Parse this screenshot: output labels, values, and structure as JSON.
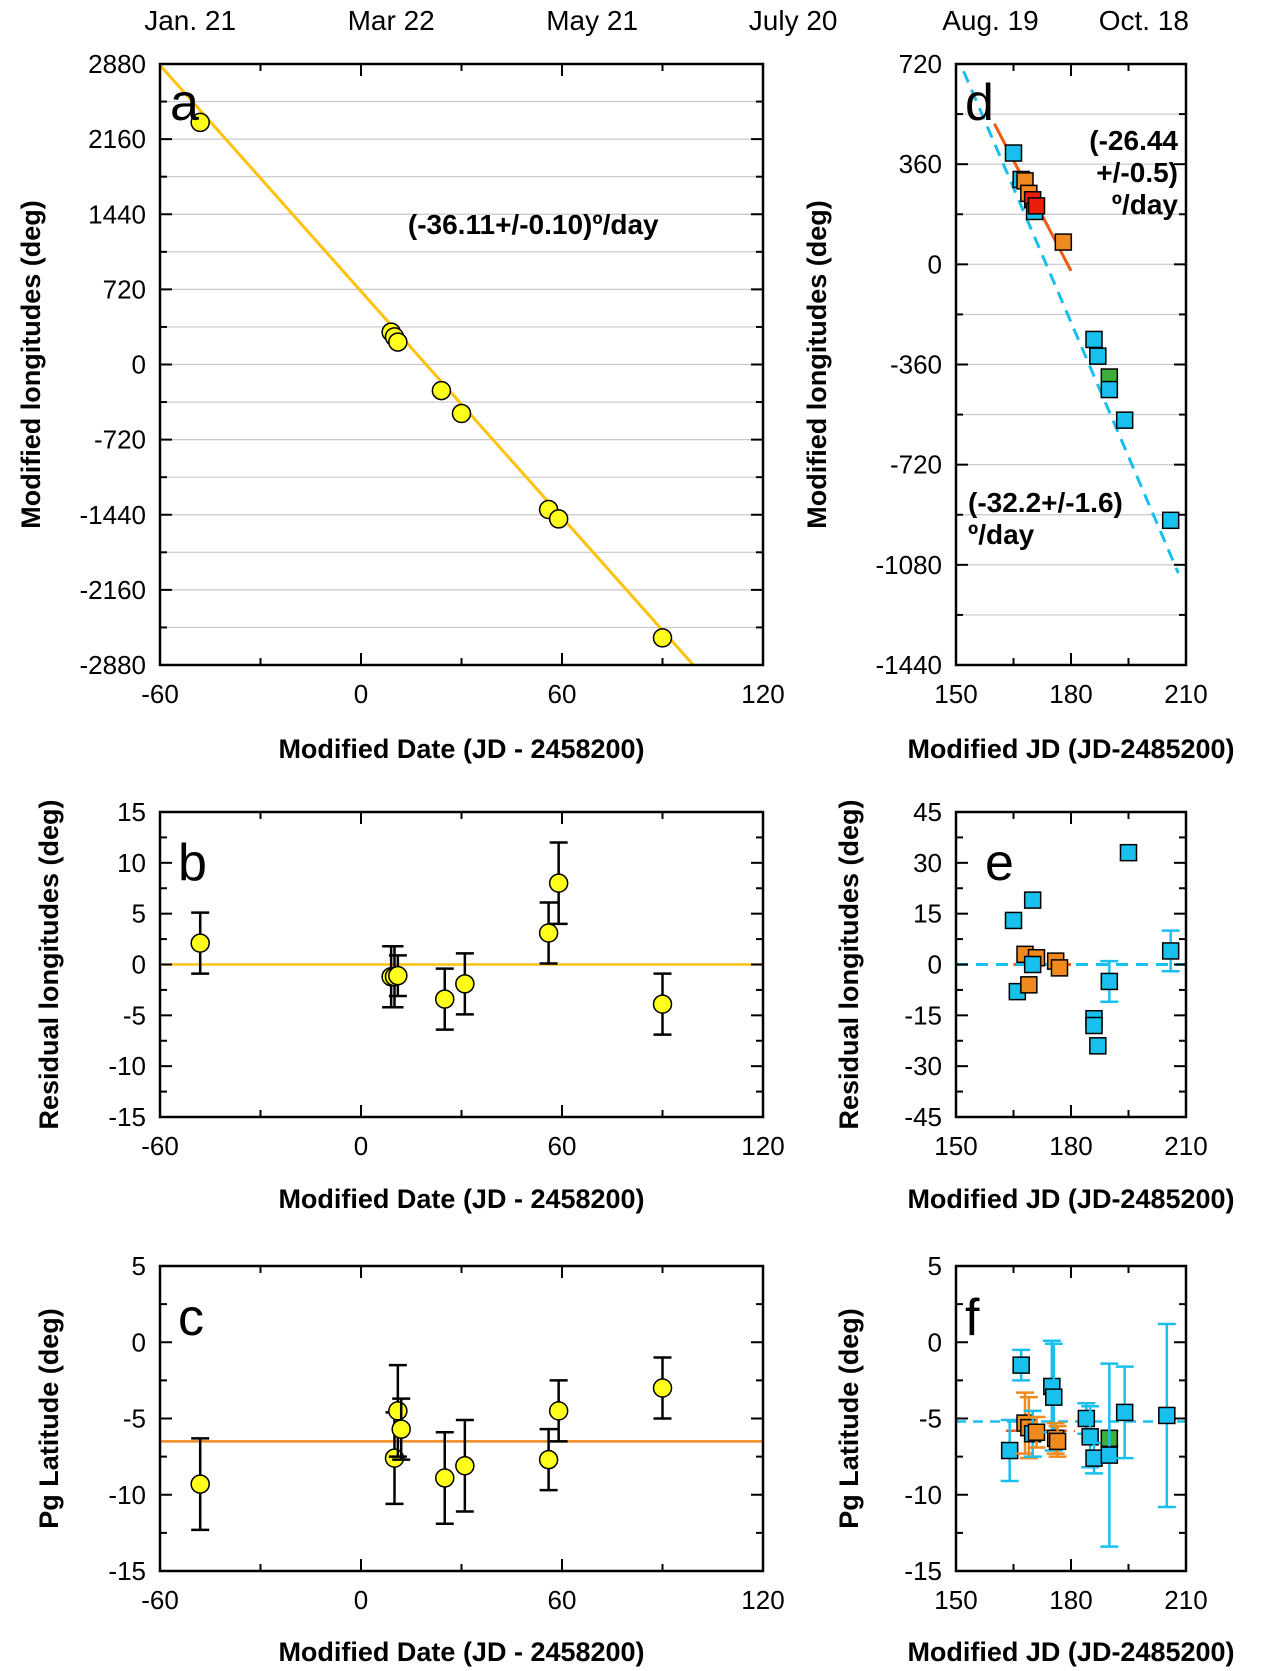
{
  "colors": {
    "yellow_fill": "#ffff1a",
    "yellow_line": "#ffc20e",
    "orange": "#f08a1e",
    "red_orange": "#ef5a12",
    "red_marker": "#ee1c0b",
    "cyan": "#19c0ee",
    "green": "#3eb03a",
    "annotation_orange": "#f7941d",
    "annotation_red_orange": "#f26522",
    "annotation_cyan": "#1ab7ea"
  },
  "chart_data": [
    {
      "id": "a",
      "type": "scatter",
      "panel_label": "a",
      "ylabel": "Modified longitudes (deg)",
      "xlabel": "Modified Date (JD - 2458200)",
      "xlim": [
        -60,
        120
      ],
      "ylim": [
        -2880,
        2880
      ],
      "xticks": [
        -60,
        0,
        60,
        120
      ],
      "yticks": [
        -2880,
        -2160,
        -1440,
        -720,
        0,
        720,
        1440,
        2160,
        2880
      ],
      "grid": "horizontal",
      "top_axis_labels": [
        {
          "x": -51,
          "label": "Jan. 21"
        },
        {
          "x": 9,
          "label": "Mar 22"
        },
        {
          "x": 69,
          "label": "May 21"
        },
        {
          "x": 129,
          "label": "July 20"
        }
      ],
      "fit_line": {
        "slope": -36.11,
        "intercept": 702,
        "color": "yellow_line"
      },
      "annotation": {
        "text": "(-36.11+/-0.10)º/day",
        "x": 14,
        "y": 1250
      },
      "points": [
        {
          "x": -48,
          "y": 2320
        },
        {
          "x": 9,
          "y": 310
        },
        {
          "x": 10,
          "y": 265
        },
        {
          "x": 11,
          "y": 215
        },
        {
          "x": 24,
          "y": -250
        },
        {
          "x": 30,
          "y": -470
        },
        {
          "x": 56,
          "y": -1390
        },
        {
          "x": 59,
          "y": -1480
        },
        {
          "x": 90,
          "y": -2620
        }
      ]
    },
    {
      "id": "b",
      "type": "scatter",
      "panel_label": "b",
      "ylabel": "Residual longitudes (deg)",
      "xlabel": "Modified Date (JD - 2458200)",
      "xlim": [
        -60,
        120
      ],
      "ylim": [
        -15,
        15
      ],
      "xticks": [
        -60,
        0,
        60,
        120
      ],
      "yticks": [
        -15,
        -10,
        -5,
        0,
        5,
        10,
        15
      ],
      "zero_line_color": "yellow_line",
      "points": [
        {
          "x": -48,
          "y": 2.1,
          "err": 3
        },
        {
          "x": 9,
          "y": -1.2,
          "err": 3
        },
        {
          "x": 10,
          "y": -1.2,
          "err": 3
        },
        {
          "x": 11,
          "y": -1.1,
          "err": 2
        },
        {
          "x": 25,
          "y": -3.4,
          "err": 3
        },
        {
          "x": 31,
          "y": -1.9,
          "err": 3
        },
        {
          "x": 56,
          "y": 3.1,
          "err": 3
        },
        {
          "x": 59,
          "y": 8.0,
          "err": 4
        },
        {
          "x": 90,
          "y": -3.9,
          "err": 3
        }
      ]
    },
    {
      "id": "c",
      "type": "scatter",
      "panel_label": "c",
      "ylabel": "Pg Latitude (deg)",
      "xlabel": "Modified Date (JD - 2458200)",
      "xlim": [
        -60,
        120
      ],
      "ylim": [
        -15,
        5
      ],
      "xticks": [
        -60,
        0,
        60,
        120
      ],
      "yticks": [
        -15,
        -10,
        -5,
        0,
        5
      ],
      "mean_line": {
        "y": -6.5,
        "color": "orange"
      },
      "points": [
        {
          "x": -48,
          "y": -9.3,
          "err": 3
        },
        {
          "x": 10,
          "y": -7.6,
          "err": 3
        },
        {
          "x": 11,
          "y": -4.5,
          "err": 3
        },
        {
          "x": 12,
          "y": -5.7,
          "err": 2
        },
        {
          "x": 25,
          "y": -8.9,
          "err": 3
        },
        {
          "x": 31,
          "y": -8.1,
          "err": 3
        },
        {
          "x": 56,
          "y": -7.7,
          "err": 2
        },
        {
          "x": 59,
          "y": -4.5,
          "err": 2
        },
        {
          "x": 90,
          "y": -3.0,
          "err": 2
        }
      ]
    },
    {
      "id": "d",
      "type": "scatter",
      "panel_label": "d",
      "ylabel": "Modified longitudes (deg)",
      "xlabel": "Modified JD (JD-2485200)",
      "xlim": [
        150,
        210
      ],
      "ylim": [
        -1440,
        720
      ],
      "xticks": [
        150,
        180,
        210
      ],
      "yticks": [
        -1440,
        -1080,
        -720,
        -360,
        0,
        360,
        720
      ],
      "grid": "horizontal",
      "top_axis_labels": [
        {
          "x": 159,
          "label": "Aug. 19"
        },
        {
          "x": 199,
          "label": "Oct. 18"
        }
      ],
      "fit_lines": [
        {
          "slope": -26.44,
          "intercept": 4736,
          "x_from": 160,
          "x_to": 180,
          "color": "red_orange",
          "dash": false
        },
        {
          "slope": -32.2,
          "intercept": 5588,
          "x_from": 152,
          "x_to": 208,
          "color": "cyan",
          "dash": true
        }
      ],
      "annotations": [
        {
          "lines": [
            "(-26.44",
            "+/-0.5)",
            "º/day"
          ],
          "color": "annotation_red_orange"
        },
        {
          "lines": [
            "(-32.2+/-1.6)",
            "º/day"
          ],
          "color": "annotation_cyan"
        }
      ],
      "points": [
        {
          "x": 165,
          "y": 400,
          "color": "cyan"
        },
        {
          "x": 167,
          "y": 305,
          "color": "cyan"
        },
        {
          "x": 168,
          "y": 300,
          "color": "orange"
        },
        {
          "x": 169,
          "y": 255,
          "color": "orange"
        },
        {
          "x": 170,
          "y": 232,
          "color": "red_marker"
        },
        {
          "x": 170.5,
          "y": 190,
          "color": "cyan"
        },
        {
          "x": 171,
          "y": 210,
          "color": "red_marker"
        },
        {
          "x": 178,
          "y": 80,
          "color": "orange"
        },
        {
          "x": 186,
          "y": -270,
          "color": "cyan"
        },
        {
          "x": 187,
          "y": -330,
          "color": "cyan"
        },
        {
          "x": 190,
          "y": -405,
          "color": "green"
        },
        {
          "x": 190,
          "y": -450,
          "color": "cyan"
        },
        {
          "x": 194,
          "y": -560,
          "color": "cyan"
        },
        {
          "x": 206,
          "y": -920,
          "color": "cyan"
        }
      ]
    },
    {
      "id": "e",
      "type": "scatter",
      "panel_label": "e",
      "ylabel": "Residual longitudes (deg)",
      "xlabel": "Modified JD (JD-2485200)",
      "xlim": [
        150,
        210
      ],
      "ylim": [
        -45,
        45
      ],
      "xticks": [
        150,
        180,
        210
      ],
      "yticks": [
        -45,
        -30,
        -15,
        0,
        15,
        30,
        45
      ],
      "zero_lines": [
        {
          "x_from": 165,
          "x_to": 180,
          "color": "red_orange",
          "dash": false
        },
        {
          "x_from": 150,
          "x_to": 210,
          "color": "cyan",
          "dash": true
        }
      ],
      "points": [
        {
          "x": 165,
          "y": 13,
          "err": 0,
          "color": "cyan"
        },
        {
          "x": 166,
          "y": -8,
          "err": 0,
          "color": "cyan"
        },
        {
          "x": 168,
          "y": 3,
          "err": 0,
          "color": "orange"
        },
        {
          "x": 169,
          "y": -6,
          "err": 0,
          "color": "orange"
        },
        {
          "x": 170,
          "y": 19,
          "err": 0,
          "color": "cyan"
        },
        {
          "x": 171,
          "y": 2,
          "err": 0,
          "color": "orange"
        },
        {
          "x": 170,
          "y": 0,
          "err": 0,
          "color": "cyan"
        },
        {
          "x": 176,
          "y": 1,
          "err": 0,
          "color": "orange"
        },
        {
          "x": 177,
          "y": -1,
          "err": 0,
          "color": "orange"
        },
        {
          "x": 186,
          "y": -16,
          "err": 0,
          "color": "cyan"
        },
        {
          "x": 186,
          "y": -18,
          "err": 0,
          "color": "cyan"
        },
        {
          "x": 187,
          "y": -24,
          "err": 0,
          "color": "cyan"
        },
        {
          "x": 190,
          "y": -5,
          "err": 6,
          "color": "cyan"
        },
        {
          "x": 195,
          "y": 33,
          "err": 2,
          "color": "cyan"
        },
        {
          "x": 206,
          "y": 4,
          "err": 6,
          "color": "cyan"
        }
      ]
    },
    {
      "id": "f",
      "type": "scatter",
      "panel_label": "f",
      "ylabel": "Pg Latitude (deg)",
      "xlabel": "Modified JD (JD-2485200)",
      "xlim": [
        150,
        210
      ],
      "ylim": [
        -15,
        5
      ],
      "xticks": [
        150,
        180,
        210
      ],
      "yticks": [
        -15,
        -10,
        -5,
        0,
        5
      ],
      "mean_lines": [
        {
          "y": -5.8,
          "x_from": 163,
          "x_to": 181,
          "color": "red_orange",
          "dash": true
        },
        {
          "y": -5.2,
          "x_from": 150,
          "x_to": 210,
          "color": "cyan",
          "dash": true
        }
      ],
      "points": [
        {
          "x": 164,
          "y": -7.1,
          "err": 2,
          "color": "cyan"
        },
        {
          "x": 167,
          "y": -1.5,
          "err": 1,
          "color": "cyan"
        },
        {
          "x": 168,
          "y": -5.3,
          "err": 2,
          "color": "orange"
        },
        {
          "x": 169,
          "y": -5.6,
          "err": 2,
          "color": "orange"
        },
        {
          "x": 170,
          "y": -6.0,
          "err": 1.5,
          "color": "cyan"
        },
        {
          "x": 171,
          "y": -5.9,
          "err": 1,
          "color": "orange"
        },
        {
          "x": 175,
          "y": -2.9,
          "err": 3,
          "color": "cyan"
        },
        {
          "x": 175.5,
          "y": -3.6,
          "err": 3.5,
          "color": "cyan"
        },
        {
          "x": 176,
          "y": -6.3,
          "err": 1,
          "color": "orange"
        },
        {
          "x": 176.5,
          "y": -6.5,
          "err": 1,
          "color": "orange"
        },
        {
          "x": 184,
          "y": -5.0,
          "err": 1,
          "color": "cyan"
        },
        {
          "x": 185,
          "y": -6.2,
          "err": 2,
          "color": "cyan"
        },
        {
          "x": 186,
          "y": -7.6,
          "err": 1,
          "color": "cyan"
        },
        {
          "x": 190,
          "y": -6.3,
          "err": 0.5,
          "color": "green"
        },
        {
          "x": 190,
          "y": -7.4,
          "err": 6,
          "color": "cyan"
        },
        {
          "x": 194,
          "y": -4.6,
          "err": 3,
          "color": "cyan"
        },
        {
          "x": 205,
          "y": -4.8,
          "err": 6,
          "color": "cyan"
        }
      ]
    }
  ]
}
